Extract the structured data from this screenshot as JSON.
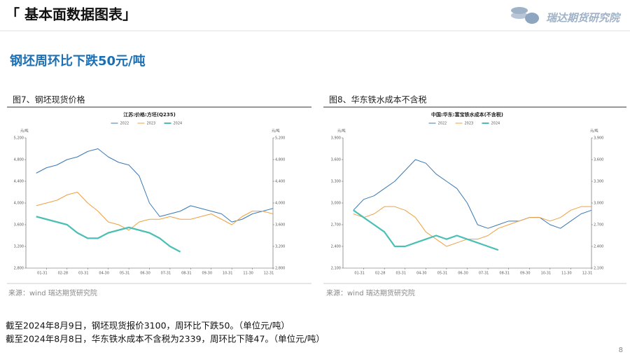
{
  "header": {
    "title": "「 基本面数据图表」",
    "logo": "瑞达期货研究院"
  },
  "subtitle": "钢坯周环比下跌50元/吨",
  "panels": [
    {
      "caption": "图7、钢坯现货价格",
      "source": "来源：wind   瑞达期货研究院"
    },
    {
      "caption": "图8、华东铁水成本不含税",
      "source": "来源：wind   瑞达期货研究院"
    }
  ],
  "notes": [
    "截至2024年8月9日，钢坯现货报价3100，周环比下跌50。（单位元/吨）",
    "截至2024年8月8日，华东铁水成本不含税为2339，周环比下降47。（单位元/吨）"
  ],
  "page_number": "8",
  "chart_data": [
    {
      "type": "line",
      "title": "江苏:价格:方坯(Q235)",
      "y_unit": "元/吨",
      "categories": [
        null,
        "01-31",
        null,
        "02-28",
        null,
        "03-31",
        null,
        "04-30",
        null,
        "05-31",
        null,
        "06-30",
        null,
        "07-31",
        null,
        "08-31",
        null,
        "09-30",
        null,
        "10-31",
        null,
        "11-30",
        null,
        "12-31"
      ],
      "ylim": [
        2800,
        5200
      ],
      "yticks": [
        {
          "value": 2800,
          "label": "2,800"
        },
        {
          "value": 3200,
          "label": "3,200"
        },
        {
          "value": 3600,
          "label": "3,600"
        },
        {
          "value": 4000,
          "label": "4,000"
        },
        {
          "value": 4400,
          "label": "4,400"
        },
        {
          "value": 4800,
          "label": "4,800"
        },
        {
          "value": 5200,
          "label": "5,200"
        }
      ],
      "series": [
        {
          "name": "2022",
          "color": "#3a78b5",
          "values": [
            4550,
            4650,
            4700,
            4800,
            4850,
            4950,
            5000,
            4850,
            4750,
            4700,
            4500,
            4000,
            3750,
            3800,
            3850,
            3950,
            3900,
            3850,
            3800,
            3650,
            3700,
            3800,
            3850,
            3900
          ]
        },
        {
          "name": "2023",
          "color": "#f0a040",
          "values": [
            3950,
            4000,
            4050,
            4150,
            4200,
            4000,
            3850,
            3650,
            3600,
            3500,
            3650,
            3700,
            3700,
            3750,
            3700,
            3700,
            3750,
            3800,
            3700,
            3600,
            3750,
            3850,
            3850,
            3800
          ]
        },
        {
          "name": "2024",
          "color": "#4bbfb5",
          "values": [
            3750,
            3700,
            3650,
            3600,
            3450,
            3350,
            3350,
            3450,
            3500,
            3550,
            3500,
            3450,
            3350,
            3200,
            3100,
            null,
            null,
            null,
            null,
            null,
            null,
            null,
            null,
            null
          ]
        }
      ]
    },
    {
      "type": "line",
      "title": "中国:华东:富宝铁水成本(不含税)",
      "y_unit": "元/吨",
      "categories": [
        null,
        "01-31",
        null,
        "02-28",
        null,
        "03-31",
        null,
        "04-30",
        null,
        "05-31",
        null,
        "06-30",
        null,
        "07-31",
        null,
        "08-31",
        null,
        "09-30",
        null,
        "10-31",
        null,
        "11-30",
        null,
        "12-31"
      ],
      "ylim": [
        2100,
        3900
      ],
      "yticks": [
        {
          "value": 2100,
          "label": "2,100"
        },
        {
          "value": 2400,
          "label": "2,400"
        },
        {
          "value": 2700,
          "label": "2,700"
        },
        {
          "value": 3000,
          "label": "3,000"
        },
        {
          "value": 3300,
          "label": "3,300"
        },
        {
          "value": 3600,
          "label": "3,600"
        },
        {
          "value": 3900,
          "label": "3,900"
        }
      ],
      "series": [
        {
          "name": "2022",
          "color": "#3a78b5",
          "values": [
            2900,
            3050,
            3100,
            3200,
            3300,
            3450,
            3600,
            3550,
            3400,
            3300,
            3200,
            3000,
            2700,
            2650,
            2700,
            2750,
            2750,
            2800,
            2800,
            2700,
            2650,
            2750,
            2850,
            2900
          ]
        },
        {
          "name": "2023",
          "color": "#f0a040",
          "values": [
            2850,
            2800,
            2850,
            2950,
            2950,
            2900,
            2800,
            2600,
            2500,
            2400,
            2450,
            2500,
            2500,
            2550,
            2650,
            2700,
            2750,
            2800,
            2800,
            2750,
            2800,
            2900,
            2950,
            2950
          ]
        },
        {
          "name": "2024",
          "color": "#4bbfb5",
          "values": [
            2900,
            2800,
            2700,
            2600,
            2400,
            2400,
            2450,
            2500,
            2550,
            2500,
            2550,
            2500,
            2450,
            2400,
            2350,
            null,
            null,
            null,
            null,
            null,
            null,
            null,
            null,
            null
          ]
        }
      ]
    }
  ]
}
